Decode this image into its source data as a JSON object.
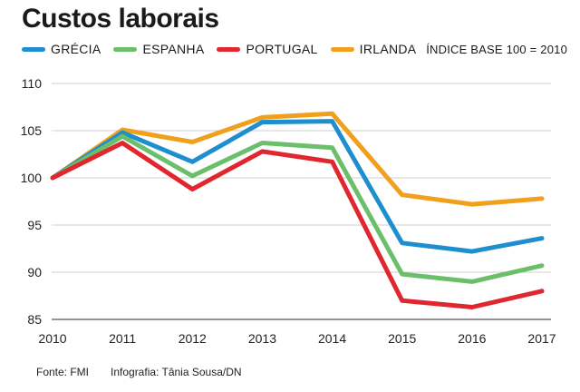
{
  "title": "Custos laborais",
  "legend": [
    {
      "name": "GRÉCIA",
      "color": "#1f8ecf"
    },
    {
      "name": "ESPANHA",
      "color": "#6cbf6a"
    },
    {
      "name": "PORTUGAL",
      "color": "#e0262e"
    },
    {
      "name": "IRLANDA",
      "color": "#f0a01d"
    }
  ],
  "baseline_note": "ÍNDICE BASE 100 = 2010",
  "footer": {
    "source": "Fonte: FMI",
    "credit": "Infografia: Tânia Sousa/DN"
  },
  "chart_data": {
    "type": "line",
    "title": "Custos laborais",
    "xlabel": "",
    "ylabel": "",
    "x": [
      "2010",
      "2011",
      "2012",
      "2013",
      "2014",
      "2015",
      "2016",
      "2017"
    ],
    "ylim": [
      85,
      110
    ],
    "yticks": [
      110,
      105,
      100,
      95,
      90,
      85
    ],
    "grid": true,
    "series": [
      {
        "name": "GRÉCIA",
        "color": "#1f8ecf",
        "values": [
          100,
          104.8,
          101.7,
          105.9,
          106.0,
          93.1,
          92.2,
          93.6
        ]
      },
      {
        "name": "ESPANHA",
        "color": "#6cbf6a",
        "values": [
          100,
          104.4,
          100.2,
          103.7,
          103.2,
          89.8,
          89.0,
          90.7
        ]
      },
      {
        "name": "PORTUGAL",
        "color": "#e0262e",
        "values": [
          100,
          103.7,
          98.8,
          102.8,
          101.7,
          87.0,
          86.3,
          88.0
        ]
      },
      {
        "name": "IRLANDA",
        "color": "#f0a01d",
        "values": [
          100,
          105.1,
          103.8,
          106.4,
          106.8,
          98.2,
          97.2,
          97.8
        ]
      }
    ]
  }
}
